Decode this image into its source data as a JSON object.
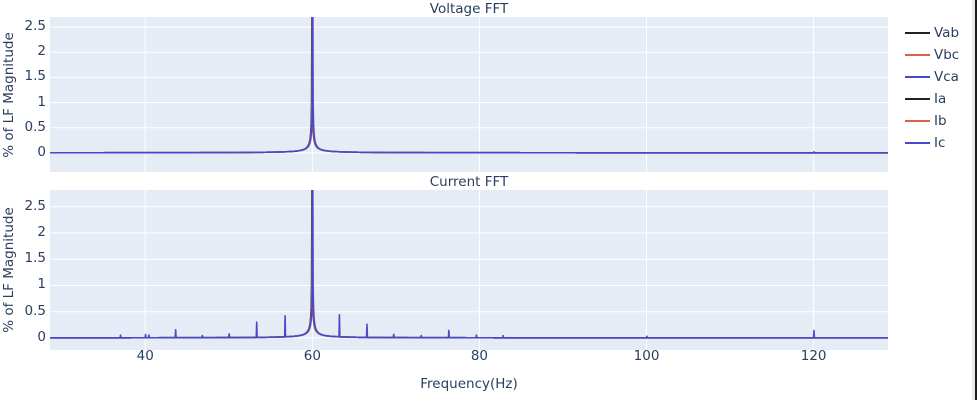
{
  "chart_data": [
    {
      "type": "line",
      "title": "Voltage FFT",
      "xlabel": "",
      "ylabel": "% of LF Magnitude",
      "xlim": [
        28.6,
        128.9
      ],
      "ylim": [
        -0.38,
        2.7
      ],
      "xticks": [
        40,
        60,
        80,
        100,
        120
      ],
      "yticks": [
        0,
        0.5,
        1,
        1.5,
        2,
        2.5
      ],
      "ytick_labels": [
        "0",
        "0.5",
        "1",
        "1.5",
        "2",
        "2.5"
      ],
      "grid": true,
      "legend_position": "right",
      "series": [
        {
          "name": "Vab",
          "color": "#222222",
          "peak_hz": 60,
          "peak_value": 100,
          "leakage": 0.07,
          "spikes": []
        },
        {
          "name": "Vbc",
          "color": "#d9604c",
          "peak_hz": 60,
          "peak_value": 100,
          "leakage": 0.07,
          "spikes": []
        },
        {
          "name": "Vca",
          "color": "#4b47c9",
          "peak_hz": 60,
          "peak_value": 100,
          "leakage": 0.07,
          "spikes": [
            {
              "hz": 120,
              "value": 0.02
            }
          ]
        }
      ],
      "description": "Dominant 60 Hz fundamental far exceeding axis range; near-zero elsewhere"
    },
    {
      "type": "line",
      "title": "Current FFT",
      "xlabel": "Frequency(Hz)",
      "ylabel": "% of LF Magnitude",
      "xlim": [
        28.6,
        128.9
      ],
      "ylim": [
        -0.23,
        2.82
      ],
      "xticks": [
        40,
        60,
        80,
        100,
        120
      ],
      "xtick_labels": [
        "40",
        "60",
        "80",
        "100",
        "120"
      ],
      "yticks": [
        0,
        0.5,
        1,
        1.5,
        2,
        2.5
      ],
      "ytick_labels": [
        "0",
        "0.5",
        "1",
        "1.5",
        "2",
        "2.5"
      ],
      "grid": true,
      "series": [
        {
          "name": "Ia",
          "color": "#222222",
          "peak_hz": 60,
          "peak_value": 100,
          "leakage": 0.07,
          "spikes": []
        },
        {
          "name": "Ib",
          "color": "#d9604c",
          "peak_hz": 60,
          "peak_value": 100,
          "leakage": 0.07,
          "spikes": []
        },
        {
          "name": "Ic",
          "color": "#4b47c9",
          "peak_hz": 60,
          "peak_value": 100,
          "leakage": 0.07,
          "spikes": [
            {
              "hz": 37.0,
              "value": 0.05
            },
            {
              "hz": 40.0,
              "value": 0.06
            },
            {
              "hz": 40.4,
              "value": 0.05
            },
            {
              "hz": 43.6,
              "value": 0.15
            },
            {
              "hz": 46.8,
              "value": 0.04
            },
            {
              "hz": 50.0,
              "value": 0.07
            },
            {
              "hz": 53.3,
              "value": 0.29
            },
            {
              "hz": 56.7,
              "value": 0.4
            },
            {
              "hz": 63.2,
              "value": 0.42
            },
            {
              "hz": 66.5,
              "value": 0.25
            },
            {
              "hz": 69.7,
              "value": 0.06
            },
            {
              "hz": 73.0,
              "value": 0.04
            },
            {
              "hz": 76.3,
              "value": 0.14
            },
            {
              "hz": 79.6,
              "value": 0.05
            },
            {
              "hz": 82.8,
              "value": 0.04
            },
            {
              "hz": 100.0,
              "value": 0.03
            },
            {
              "hz": 120.0,
              "value": 0.14
            }
          ]
        }
      ],
      "description": "Dominant 60 Hz fundamental plus small harmonic/interharmonic spikes"
    }
  ],
  "legend": {
    "items": [
      {
        "label": "Vab",
        "color": "#222222"
      },
      {
        "label": "Vbc",
        "color": "#d9604c"
      },
      {
        "label": "Vca",
        "color": "#4b47c9"
      },
      {
        "label": "Ia",
        "color": "#222222"
      },
      {
        "label": "Ib",
        "color": "#d9604c"
      },
      {
        "label": "Ic",
        "color": "#4b47c9"
      }
    ]
  },
  "colors": {
    "plot_bg": "#e5ecf6",
    "grid": "#ffffff",
    "text": "#2a3f5f"
  },
  "subplot_titles": [
    "Voltage FFT",
    "Current FFT"
  ],
  "axis": {
    "ylabel": "% of LF Magnitude",
    "xlabel": "Frequency(Hz)"
  }
}
